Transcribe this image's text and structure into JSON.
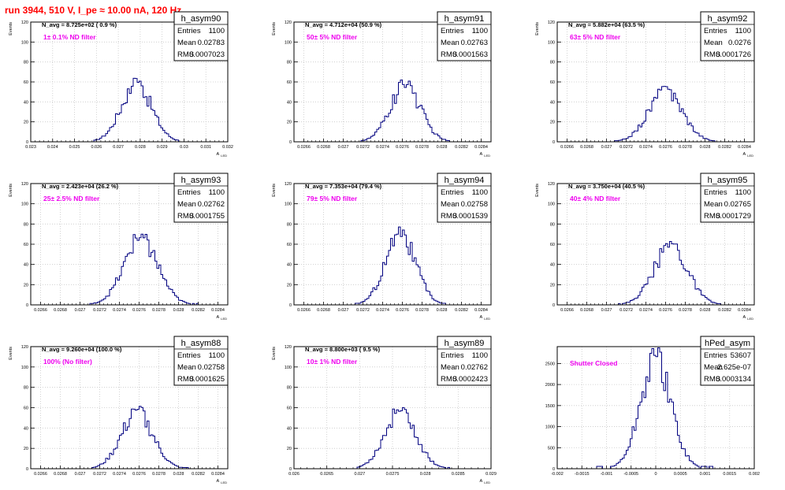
{
  "run_title": "run 3944,   510 V, I_pe ≈ 10.00 nA, 120 Hz",
  "colors": {
    "title": "#ff0000",
    "hist_line": "#000080",
    "annotation": "#ee00ee",
    "grid": "#c8c8c8"
  },
  "chart_data": [
    {
      "type": "histogram",
      "name": "h_asym90",
      "stats": {
        "entries": "1100",
        "mean": "0.02783",
        "rms": "0.0007023"
      },
      "navg_label": "N_avg = 8.725e+02 ( 0.9 %)",
      "annotation": "1± 0.1% ND filter",
      "xlabel": "A_LED",
      "ylabel": "Events",
      "xlim": [
        0.023,
        0.032
      ],
      "ylim": [
        0,
        120
      ],
      "xticks": [
        "0.023",
        "0.024",
        "0.025",
        "0.026",
        "0.027",
        "0.028",
        "0.029",
        "0.03",
        "0.031",
        "0.032"
      ],
      "yticks": [
        "0",
        "20",
        "40",
        "60",
        "80",
        "100",
        "120"
      ],
      "peak": {
        "center": 0.02783,
        "sigma": 0.0007023,
        "height": 63,
        "lo": 0.0259,
        "hi": 0.0298
      }
    },
    {
      "type": "histogram",
      "name": "h_asym91",
      "stats": {
        "entries": "1100",
        "mean": "0.02763",
        "rms": "0.0001563"
      },
      "navg_label": "N_avg = 4.712e+04 (50.9 %)",
      "annotation": "50± 5% ND filter",
      "xlabel": "A_LED",
      "ylabel": "Events",
      "xlim": [
        0.0265,
        0.0285
      ],
      "ylim": [
        0,
        120
      ],
      "xticks": [
        "0.0266",
        "0.0268",
        "0.027",
        "0.0272",
        "0.0274",
        "0.0276",
        "0.0278",
        "0.028",
        "0.0282",
        "0.0284"
      ],
      "yticks": [
        "0",
        "20",
        "40",
        "60",
        "80",
        "100",
        "120"
      ],
      "peak": {
        "center": 0.02763,
        "sigma": 0.0001563,
        "height": 61,
        "lo": 0.02718,
        "hi": 0.02812
      }
    },
    {
      "type": "histogram",
      "name": "h_asym92",
      "stats": {
        "entries": "1100",
        "mean": "0.0276",
        "rms": "0.0001726"
      },
      "navg_label": "N_avg = 5.882e+04 (63.5 %)",
      "annotation": "63± 5% ND filter",
      "xlabel": "A_LED",
      "ylabel": "Events",
      "xlim": [
        0.0265,
        0.0285
      ],
      "ylim": [
        0,
        120
      ],
      "xticks": [
        "0.0266",
        "0.0268",
        "0.027",
        "0.0272",
        "0.0274",
        "0.0276",
        "0.0278",
        "0.028",
        "0.0282",
        "0.0284"
      ],
      "yticks": [
        "0",
        "20",
        "40",
        "60",
        "80",
        "100",
        "120"
      ],
      "peak": {
        "center": 0.0276,
        "sigma": 0.0001726,
        "height": 56,
        "lo": 0.02708,
        "hi": 0.02812
      }
    },
    {
      "type": "histogram",
      "name": "h_asym93",
      "stats": {
        "entries": "1100",
        "mean": "0.02762",
        "rms": "0.0001755"
      },
      "navg_label": "N_avg = 2.423e+04 (26.2 %)",
      "annotation": "25± 2.5% ND filter",
      "xlabel": "A_LED",
      "ylabel": "Events",
      "xlim": [
        0.0265,
        0.0285
      ],
      "ylim": [
        0,
        120
      ],
      "xticks": [
        "0.0266",
        "0.0268",
        "0.027",
        "0.0272",
        "0.0274",
        "0.0276",
        "0.0278",
        "0.028",
        "0.0282",
        "0.0284"
      ],
      "yticks": [
        "0",
        "20",
        "40",
        "60",
        "80",
        "100",
        "120"
      ],
      "peak": {
        "center": 0.02762,
        "sigma": 0.0001755,
        "height": 70,
        "lo": 0.0271,
        "hi": 0.0282
      }
    },
    {
      "type": "histogram",
      "name": "h_asym94",
      "stats": {
        "entries": "1100",
        "mean": "0.02758",
        "rms": "0.0001539"
      },
      "navg_label": "N_avg = 7.353e+04 (79.4 %)",
      "annotation": "79± 5% ND filter",
      "xlabel": "A_LED",
      "ylabel": "Events",
      "xlim": [
        0.0265,
        0.0285
      ],
      "ylim": [
        0,
        120
      ],
      "xticks": [
        "0.0266",
        "0.0268",
        "0.027",
        "0.0272",
        "0.0274",
        "0.0276",
        "0.0278",
        "0.028",
        "0.0282",
        "0.0284"
      ],
      "yticks": [
        "0",
        "20",
        "40",
        "60",
        "80",
        "100",
        "120"
      ],
      "peak": {
        "center": 0.02758,
        "sigma": 0.0001539,
        "height": 76,
        "lo": 0.02712,
        "hi": 0.02805
      }
    },
    {
      "type": "histogram",
      "name": "h_asym95",
      "stats": {
        "entries": "1100",
        "mean": "0.02765",
        "rms": "0.0001729"
      },
      "navg_label": "N_avg = 3.750e+04 (40.5 %)",
      "annotation": "40± 4% ND filter",
      "xlabel": "A_LED",
      "ylabel": "Events",
      "xlim": [
        0.0265,
        0.0285
      ],
      "ylim": [
        0,
        120
      ],
      "xticks": [
        "0.0266",
        "0.0268",
        "0.027",
        "0.0272",
        "0.0274",
        "0.0276",
        "0.0278",
        "0.028",
        "0.0282",
        "0.0284"
      ],
      "yticks": [
        "0",
        "20",
        "40",
        "60",
        "80",
        "100",
        "120"
      ],
      "peak": {
        "center": 0.02765,
        "sigma": 0.0001729,
        "height": 63,
        "lo": 0.02712,
        "hi": 0.02818
      }
    },
    {
      "type": "histogram",
      "name": "h_asym88",
      "stats": {
        "entries": "1100",
        "mean": "0.02758",
        "rms": "0.0001625"
      },
      "navg_label": "N_avg = 9.260e+04 (100.0 %)",
      "annotation": "100% (No filter)",
      "xlabel": "A_LED",
      "ylabel": "Events",
      "xlim": [
        0.0265,
        0.0285
      ],
      "ylim": [
        0,
        120
      ],
      "xticks": [
        "0.0266",
        "0.0268",
        "0.027",
        "0.0272",
        "0.0274",
        "0.0276",
        "0.0278",
        "0.028",
        "0.0282",
        "0.0284"
      ],
      "yticks": [
        "0",
        "20",
        "40",
        "60",
        "80",
        "100",
        "120"
      ],
      "peak": {
        "center": 0.02758,
        "sigma": 0.0001625,
        "height": 60,
        "lo": 0.02712,
        "hi": 0.0281
      }
    },
    {
      "type": "histogram",
      "name": "h_asym89",
      "stats": {
        "entries": "1100",
        "mean": "0.02762",
        "rms": "0.0002423"
      },
      "navg_label": "N_avg = 8.800e+03 ( 9.5 %)",
      "annotation": "10± 1% ND filter",
      "xlabel": "A_LED",
      "ylabel": "Events",
      "xlim": [
        0.026,
        0.029
      ],
      "ylim": [
        0,
        120
      ],
      "xticks": [
        "0.026",
        "0.0265",
        "0.027",
        "0.0275",
        "0.028",
        "0.0285",
        "0.029"
      ],
      "yticks": [
        "0",
        "20",
        "40",
        "60",
        "80",
        "100",
        "120"
      ],
      "peak": {
        "center": 0.02762,
        "sigma": 0.0002423,
        "height": 61,
        "lo": 0.02695,
        "hi": 0.02838
      }
    },
    {
      "type": "histogram",
      "name": "hPed_asym",
      "stats": {
        "entries": "53607",
        "mean": "2.625e-07",
        "rms": "0.0003134"
      },
      "navg_label": "",
      "annotation": "Shutter Closed",
      "xlabel": "",
      "ylabel": "",
      "xlim": [
        -0.002,
        0.002
      ],
      "ylim": [
        0,
        2900
      ],
      "xticks": [
        "-0.002",
        "-0.0015",
        "-0.001",
        "-0.0005",
        "0",
        "0.0005",
        "0.001",
        "0.0015",
        "0.002"
      ],
      "yticks": [
        "0",
        "500",
        "1000",
        "1500",
        "2000",
        "2500"
      ],
      "peak": {
        "center": 0.0,
        "sigma": 0.0003134,
        "height": 2800,
        "lo": -0.0012,
        "hi": 0.0012
      }
    }
  ]
}
